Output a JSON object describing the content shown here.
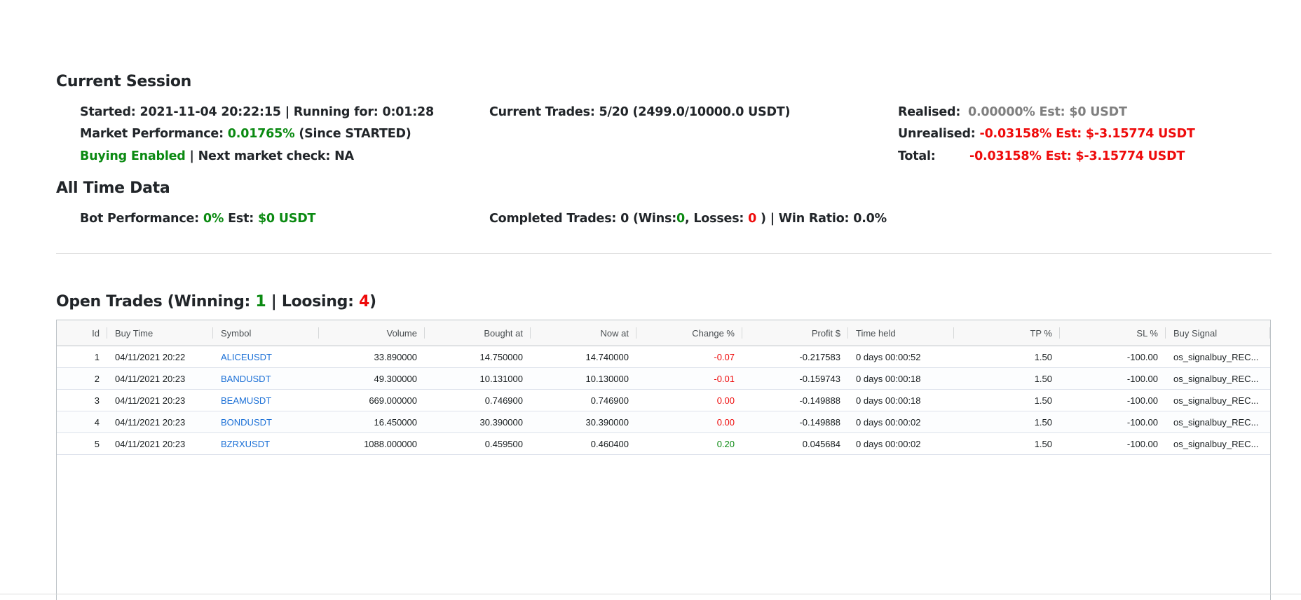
{
  "current_session": {
    "title": "Current Session",
    "started_label": "Started:",
    "started_value": "2021-11-04 20:22:15",
    "running_label": "| Running for:",
    "running_value": "0:01:28",
    "market_perf_label": "Market Performance:",
    "market_perf_value": "0.01765%",
    "market_perf_suffix": "(Since STARTED)",
    "buying_status": "Buying Enabled",
    "next_check_label": "| Next market check:",
    "next_check_value": "NA",
    "current_trades_label": "Current Trades:",
    "current_trades_value": "5/20 (2499.0/10000.0 USDT)",
    "realised_label": "Realised:",
    "realised_value": "0.00000% Est: $0 USDT",
    "unrealised_label": "Unrealised:",
    "unrealised_value": "-0.03158% Est: $-3.15774 USDT",
    "total_label": "Total:",
    "total_value": "-0.03158% Est: $-3.15774 USDT"
  },
  "all_time": {
    "title": "All Time Data",
    "bot_perf_label": "Bot Performance:",
    "bot_perf_value": "0%",
    "bot_est_label": "Est:",
    "bot_est_value": "$0 USDT",
    "completed_label": "Completed Trades:",
    "completed_value": "0",
    "wins_label": "(Wins:",
    "wins_value": "0",
    "losses_label": ", Losses:",
    "losses_value": "0",
    "win_ratio_label": ") | Win Ratio:",
    "win_ratio_value": "0.0%"
  },
  "open_trades": {
    "title_prefix": "Open Trades (Winning:",
    "winning": "1",
    "separator": "| Loosing:",
    "loosing": "4",
    "title_suffix": ")",
    "columns": [
      "Id",
      "Buy Time",
      "Symbol",
      "Volume",
      "Bought at",
      "Now at",
      "Change %",
      "Profit $",
      "Time held",
      "TP %",
      "SL %",
      "Buy Signal"
    ],
    "rows": [
      {
        "id": "1",
        "buy_time": "04/11/2021 20:22",
        "symbol": "ALICEUSDT",
        "volume": "33.890000",
        "bought_at": "14.750000",
        "now_at": "14.740000",
        "change": "-0.07",
        "profit": "-0.217583",
        "time_held": "0 days 00:00:52",
        "tp": "1.50",
        "sl": "-100.00",
        "buy_signal": "os_signalbuy_REC..."
      },
      {
        "id": "2",
        "buy_time": "04/11/2021 20:23",
        "symbol": "BANDUSDT",
        "volume": "49.300000",
        "bought_at": "10.131000",
        "now_at": "10.130000",
        "change": "-0.01",
        "profit": "-0.159743",
        "time_held": "0 days 00:00:18",
        "tp": "1.50",
        "sl": "-100.00",
        "buy_signal": "os_signalbuy_REC..."
      },
      {
        "id": "3",
        "buy_time": "04/11/2021 20:23",
        "symbol": "BEAMUSDT",
        "volume": "669.000000",
        "bought_at": "0.746900",
        "now_at": "0.746900",
        "change": "0.00",
        "profit": "-0.149888",
        "time_held": "0 days 00:00:18",
        "tp": "1.50",
        "sl": "-100.00",
        "buy_signal": "os_signalbuy_REC..."
      },
      {
        "id": "4",
        "buy_time": "04/11/2021 20:23",
        "symbol": "BONDUSDT",
        "volume": "16.450000",
        "bought_at": "30.390000",
        "now_at": "30.390000",
        "change": "0.00",
        "profit": "-0.149888",
        "time_held": "0 days 00:00:02",
        "tp": "1.50",
        "sl": "-100.00",
        "buy_signal": "os_signalbuy_REC..."
      },
      {
        "id": "5",
        "buy_time": "04/11/2021 20:23",
        "symbol": "BZRXUSDT",
        "volume": "1088.000000",
        "bought_at": "0.459500",
        "now_at": "0.460400",
        "change": "0.20",
        "profit": "0.045684",
        "time_held": "0 days 00:00:02",
        "tp": "1.50",
        "sl": "-100.00",
        "buy_signal": "os_signalbuy_REC..."
      }
    ],
    "change_colors": {
      "negative": "#ee0b0b",
      "zero": "#ee0b0b",
      "positive": "#0b8a12"
    }
  },
  "colors": {
    "green": "#0b8a12",
    "red": "#ee0b0b",
    "grey": "#7f7f7f",
    "link": "#1a6fd6"
  }
}
